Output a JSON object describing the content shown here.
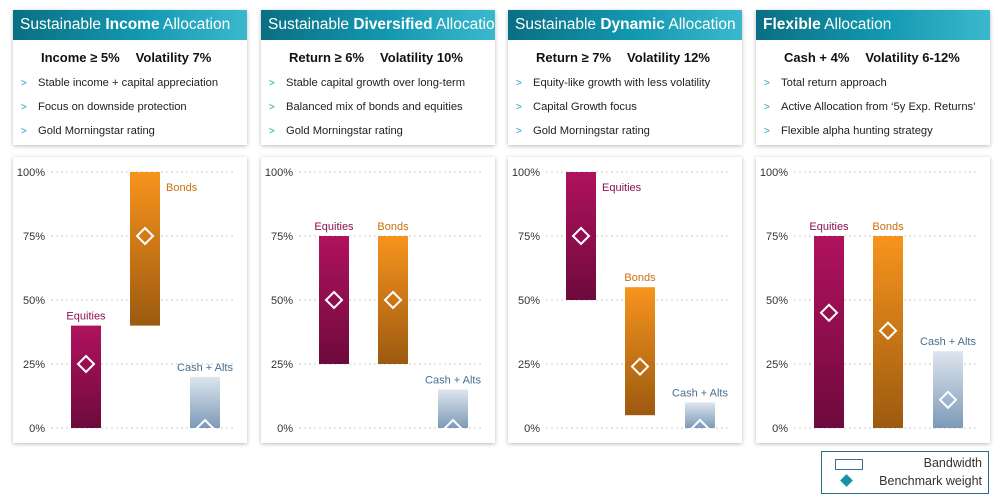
{
  "cards": [
    {
      "title_pre": "Sustainable ",
      "title_bold": "Income",
      "title_post": " Allocation",
      "target1": "Income ≥ 5%",
      "target2": "Volatility 7%",
      "bullets": [
        "Stable income + capital appreciation",
        "Focus on downside protection",
        "Gold Morningstar rating"
      ]
    },
    {
      "title_pre": "Sustainable ",
      "title_bold": "Diversified",
      "title_post": " Allocation",
      "target1": "Return ≥ 6%",
      "target2": "Volatility 10%",
      "bullets": [
        "Stable capital growth over long-term",
        "Balanced mix of bonds and equities",
        "Gold Morningstar rating"
      ]
    },
    {
      "title_pre": "Sustainable ",
      "title_bold": "Dynamic",
      "title_post": " Allocation",
      "target1": "Return ≥ 7%",
      "target2": "Volatility 12%",
      "bullets": [
        "Equity-like growth with less volatility",
        "Capital Growth focus",
        "Gold Morningstar rating"
      ]
    },
    {
      "title_pre": "",
      "title_bold": "Flexible",
      "title_post": " Allocation",
      "target1": "Cash + 4%",
      "target2": "Volatility 6-12%",
      "bullets": [
        "Total return approach",
        "Active Allocation from ‘5y Exp. Returns’",
        "Flexible alpha hunting strategy"
      ]
    }
  ],
  "legend": {
    "bandwidth": "Bandwidth",
    "benchmark": "Benchmark weight"
  },
  "colors": {
    "equities_top": "#b0125e",
    "equities_bottom": "#6e0a3c",
    "bonds_top": "#f7941d",
    "bonds_bottom": "#9c5a10",
    "cash_top": "#dde5ee",
    "cash_bottom": "#7d9ab8",
    "equities_label": "#8c1050",
    "bonds_label": "#c8700a",
    "cash_label": "#4a6d8c",
    "teal": "#1a8fa8"
  },
  "chart_data": [
    {
      "type": "bar",
      "title": "Sustainable Income Allocation",
      "ylim": [
        0,
        100
      ],
      "yticks": [
        "0%",
        "25%",
        "50%",
        "75%",
        "100%"
      ],
      "series": [
        {
          "name": "Equities",
          "low": 0,
          "high": 40,
          "benchmark": 25
        },
        {
          "name": "Bonds",
          "low": 40,
          "high": 100,
          "benchmark": 75
        },
        {
          "name": "Cash + Alts",
          "low": 0,
          "high": 20,
          "benchmark": 0
        }
      ]
    },
    {
      "type": "bar",
      "title": "Sustainable Diversified Allocation",
      "ylim": [
        0,
        100
      ],
      "yticks": [
        "0%",
        "25%",
        "50%",
        "75%",
        "100%"
      ],
      "series": [
        {
          "name": "Equities",
          "low": 25,
          "high": 75,
          "benchmark": 50
        },
        {
          "name": "Bonds",
          "low": 25,
          "high": 75,
          "benchmark": 50
        },
        {
          "name": "Cash + Alts",
          "low": 0,
          "high": 15,
          "benchmark": 0
        }
      ]
    },
    {
      "type": "bar",
      "title": "Sustainable Dynamic Allocation",
      "ylim": [
        0,
        100
      ],
      "yticks": [
        "0%",
        "25%",
        "50%",
        "75%",
        "100%"
      ],
      "series": [
        {
          "name": "Equities",
          "low": 50,
          "high": 100,
          "benchmark": 75
        },
        {
          "name": "Bonds",
          "low": 5,
          "high": 55,
          "benchmark": 24
        },
        {
          "name": "Cash + Alts",
          "low": 0,
          "high": 10,
          "benchmark": 0
        }
      ]
    },
    {
      "type": "bar",
      "title": "Flexible Allocation",
      "ylim": [
        0,
        100
      ],
      "yticks": [
        "0%",
        "25%",
        "50%",
        "75%",
        "100%"
      ],
      "series": [
        {
          "name": "Equities",
          "low": 0,
          "high": 75,
          "benchmark": 45
        },
        {
          "name": "Bonds",
          "low": 0,
          "high": 75,
          "benchmark": 38
        },
        {
          "name": "Cash + Alts",
          "low": 0,
          "high": 30,
          "benchmark": 11
        }
      ]
    }
  ]
}
